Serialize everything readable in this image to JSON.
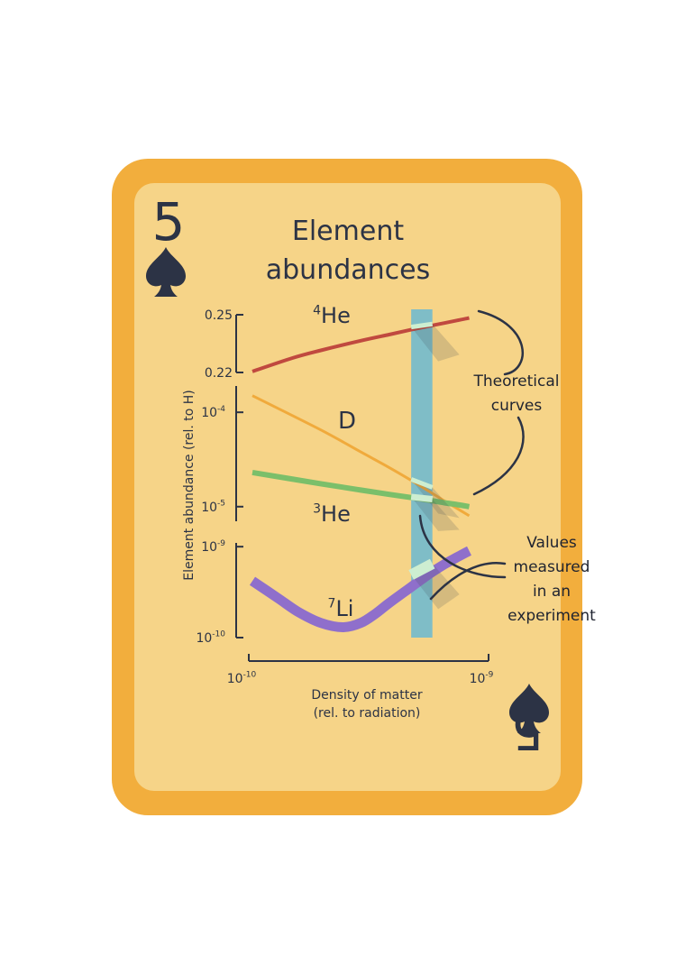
{
  "card": {
    "rank": "5",
    "suit": "spade",
    "suit_icon": "spade-icon",
    "border_color": "#f2ae3d",
    "face_color": "#f6d488",
    "ink_color": "#2c3345"
  },
  "chart_data": {
    "type": "line",
    "title_lines": [
      "Element",
      "abundances"
    ],
    "xlabel_lines": [
      "Density of matter",
      "(rel. to radiation)"
    ],
    "ylabel": "Element abundance (rel. to H)",
    "x_scale": "log",
    "x_ticks": [
      {
        "base": "10",
        "exp": "-10",
        "value": 1e-10
      },
      {
        "base": "10",
        "exp": "-9",
        "value": 1e-09
      }
    ],
    "xlim": [
      1e-10,
      1e-09
    ],
    "panels": [
      {
        "id": "he4",
        "scale": "linear",
        "ylim": [
          0.22,
          0.25
        ],
        "ticks": [
          {
            "label": "0.25",
            "value": 0.25
          },
          {
            "label": "0.22",
            "value": 0.22
          }
        ]
      },
      {
        "id": "d_he3",
        "scale": "log",
        "ylim": [
          7e-06,
          0.00019
        ],
        "ticks": [
          {
            "base": "10",
            "exp": "-4",
            "value": 0.0001
          },
          {
            "base": "10",
            "exp": "-5",
            "value": 1e-05
          }
        ]
      },
      {
        "id": "li7",
        "scale": "log",
        "ylim": [
          1e-10,
          1.1e-09
        ],
        "ticks": [
          {
            "base": "10",
            "exp": "-9",
            "value": 1e-09
          },
          {
            "base": "10",
            "exp": "-10",
            "value": 1e-10
          }
        ]
      }
    ],
    "series": [
      {
        "name_sup": "4",
        "name_main": "He",
        "panel": "he4",
        "color": "#c0493f",
        "width": 4,
        "x": [
          1e-10,
          1.5e-10,
          2e-10,
          3e-10,
          4e-10,
          5e-10,
          6e-10,
          7e-10,
          8e-10,
          9e-10
        ],
        "y": [
          0.2205,
          0.2275,
          0.2315,
          0.2365,
          0.2397,
          0.2422,
          0.2441,
          0.2457,
          0.2471,
          0.2483
        ]
      },
      {
        "name_sup": "",
        "name_main": "D",
        "panel": "d_he3",
        "color": "#f0aa3c",
        "width": 3,
        "x": [
          1e-10,
          2e-10,
          3e-10,
          4e-10,
          5e-10,
          6e-10,
          7e-10,
          8e-10,
          9e-10
        ],
        "y": [
          0.00015,
          6.5e-05,
          3.8e-05,
          2.6e-05,
          1.9e-05,
          1.45e-05,
          1.15e-05,
          9.5e-06,
          8e-06
        ]
      },
      {
        "name_sup": "3",
        "name_main": "He",
        "panel": "d_he3",
        "color": "#7bbf6a",
        "width": 6,
        "x": [
          1e-10,
          2e-10,
          3e-10,
          4e-10,
          5e-10,
          6e-10,
          7e-10,
          8e-10,
          9e-10
        ],
        "y": [
          2.3e-05,
          1.75e-05,
          1.5e-05,
          1.35e-05,
          1.25e-05,
          1.17e-05,
          1.1e-05,
          1.05e-05,
          1e-05
        ]
      },
      {
        "name_sup": "7",
        "name_main": "Li",
        "panel": "li7",
        "color": "#8f6fcb",
        "width": 11,
        "x": [
          1e-10,
          1.3e-10,
          1.6e-10,
          2e-10,
          2.5e-10,
          3e-10,
          3.5e-10,
          4e-10,
          5e-10,
          6e-10,
          7e-10,
          8e-10,
          9e-10
        ],
        "y": [
          4.2e-10,
          2.7e-10,
          1.9e-10,
          1.45e-10,
          1.3e-10,
          1.45e-10,
          1.85e-10,
          2.4e-10,
          3.6e-10,
          5e-10,
          6.4e-10,
          7.7e-10,
          9e-10
        ]
      }
    ],
    "measurement_band": {
      "x_low": 5e-10,
      "x_high": 6.2e-10,
      "color": "#7fbdc7",
      "highlight_color": "#cdeed1"
    },
    "annotations": {
      "theoretical_lines": [
        "Theoretical",
        "curves"
      ],
      "measured_lines": [
        "Values",
        "measured",
        "in an",
        "experiment"
      ]
    }
  }
}
